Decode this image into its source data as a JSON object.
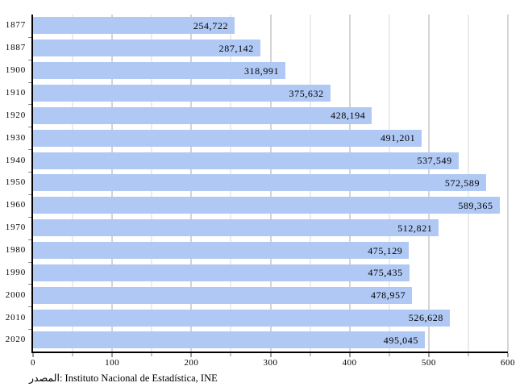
{
  "chart_data": {
    "type": "bar",
    "orientation": "horizontal",
    "title": "",
    "xlabel": "",
    "ylabel": "",
    "categories": [
      "1877",
      "1887",
      "1900",
      "1910",
      "1920",
      "1930",
      "1940",
      "1950",
      "1960",
      "1970",
      "1980",
      "1990",
      "2000",
      "2010",
      "2020"
    ],
    "values": [
      254722,
      287142,
      318991,
      375632,
      428194,
      491201,
      537549,
      572589,
      589365,
      512821,
      475129,
      475435,
      478957,
      526628,
      495045
    ],
    "value_labels": [
      "254,722",
      "287,142",
      "318,991",
      "375,632",
      "428,194",
      "491,201",
      "537,549",
      "572,589",
      "589,365",
      "512,821",
      "475,129",
      "475,435",
      "478,957",
      "526,628",
      "495,045"
    ],
    "xlim": [
      0,
      600
    ],
    "x_ticks": [
      0,
      100,
      200,
      300,
      400,
      500,
      600
    ],
    "x_tick_labels": [
      "0",
      "100",
      "200",
      "300",
      "400",
      "500",
      "600"
    ],
    "x_scale_divisor": 1000,
    "gridline_step": 50,
    "grid": "vertical, every 50 (major every 100)",
    "legend": "none",
    "bar_color": "#b0c8f4",
    "source": "المصدر: Instituto Nacional de Estadística, INE"
  }
}
